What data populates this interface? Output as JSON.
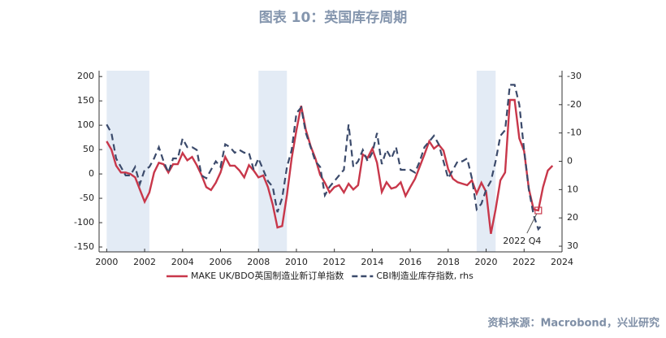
{
  "chart_data": {
    "type": "line",
    "title": "图表 10：英国库存周期",
    "source": "资料来源：Macrobond，兴业研究",
    "x": [
      2000,
      2000.25,
      2000.5,
      2000.75,
      2001,
      2001.25,
      2001.5,
      2001.75,
      2002,
      2002.25,
      2002.5,
      2002.75,
      2003,
      2003.25,
      2003.5,
      2003.75,
      2004,
      2004.25,
      2004.5,
      2004.75,
      2005,
      2005.25,
      2005.5,
      2005.75,
      2006,
      2006.25,
      2006.5,
      2006.75,
      2007,
      2007.25,
      2007.5,
      2007.75,
      2008,
      2008.25,
      2008.5,
      2008.75,
      2009,
      2009.25,
      2009.5,
      2009.75,
      2010,
      2010.25,
      2010.5,
      2010.75,
      2011,
      2011.25,
      2011.5,
      2011.75,
      2012,
      2012.25,
      2012.5,
      2012.75,
      2013,
      2013.25,
      2013.5,
      2013.75,
      2014,
      2014.25,
      2014.5,
      2014.75,
      2015,
      2015.25,
      2015.5,
      2015.75,
      2016,
      2016.25,
      2016.5,
      2016.75,
      2017,
      2017.25,
      2017.5,
      2017.75,
      2018,
      2018.25,
      2018.5,
      2018.75,
      2019,
      2019.25,
      2019.5,
      2019.75,
      2020,
      2020.25,
      2020.5,
      2020.75,
      2021,
      2021.25,
      2021.5,
      2021.75,
      2022,
      2022.25,
      2022.5,
      2022.75,
      2023,
      2023.25,
      2023.5
    ],
    "series": [
      {
        "name": "MAKE UK/BDO英国制造业新订单指数",
        "color": "#c8374a",
        "dash": false,
        "values": [
          67,
          50,
          17,
          3,
          3,
          0,
          -7,
          -32,
          -57,
          -38,
          3,
          23,
          20,
          3,
          20,
          20,
          43,
          28,
          35,
          18,
          -2,
          -27,
          -33,
          -18,
          3,
          35,
          17,
          17,
          7,
          -7,
          18,
          7,
          -7,
          -3,
          -27,
          -63,
          -110,
          -107,
          -43,
          32,
          90,
          140,
          90,
          57,
          32,
          -2,
          -18,
          -38,
          -27,
          -23,
          -38,
          -20,
          -32,
          -23,
          40,
          33,
          52,
          23,
          -37,
          -17,
          -30,
          -27,
          -17,
          -45,
          -27,
          -10,
          15,
          40,
          67,
          52,
          60,
          48,
          10,
          -10,
          -17,
          -20,
          -23,
          -13,
          -40,
          -18,
          -37,
          -123,
          -73,
          -13,
          3,
          152,
          152,
          73,
          47,
          -30,
          -73,
          -75,
          -27,
          7,
          17
        ]
      },
      {
        "name": "CBI制造业库存指数, rhs",
        "color": "#3b4a6b",
        "dash": true,
        "axis": "y2",
        "values": [
          -13,
          -10,
          -1,
          2,
          5,
          5,
          2,
          8,
          3,
          2,
          -1,
          -5,
          0,
          4,
          -1,
          -1,
          -8,
          -5,
          -5,
          -4,
          5,
          6,
          3,
          0,
          2,
          -6,
          -5,
          -3,
          -4,
          -3,
          -3,
          3,
          -1,
          3,
          7,
          9,
          18,
          13,
          2,
          -4,
          -17,
          -19,
          -10,
          -5,
          0,
          2,
          12,
          9,
          7,
          5,
          3,
          -13,
          2,
          0,
          -4,
          0,
          -3,
          -10,
          1,
          -4,
          -1,
          -5,
          3,
          3,
          3,
          4,
          0,
          -5,
          -7,
          -9,
          -6,
          0,
          6,
          3,
          0,
          0,
          -1,
          6,
          17,
          15,
          10,
          7,
          0,
          -9,
          -11,
          -27,
          -27,
          -20,
          -4,
          10,
          19,
          24,
          22,
          null,
          null
        ]
      }
    ],
    "xlim": [
      1999.6,
      2024
    ],
    "xticks": [
      2000,
      2002,
      2004,
      2006,
      2008,
      2010,
      2012,
      2014,
      2016,
      2018,
      2020,
      2022,
      2024
    ],
    "ylim": [
      -160,
      212
    ],
    "yticks": [
      -150,
      -100,
      -50,
      0,
      50,
      100,
      150,
      200
    ],
    "y2lim": [
      32,
      -32
    ],
    "y2ticks": [
      -30,
      -20,
      -10,
      0,
      10,
      20,
      30
    ],
    "shaded_periods": [
      [
        2000,
        2002.25
      ],
      [
        2008,
        2009.5
      ],
      [
        2019.5,
        2020.5
      ]
    ],
    "shade_color": "#e3ebf5",
    "annotation": {
      "text": "2022 Q4",
      "x": 2022.75
    },
    "legend": "bottom"
  }
}
